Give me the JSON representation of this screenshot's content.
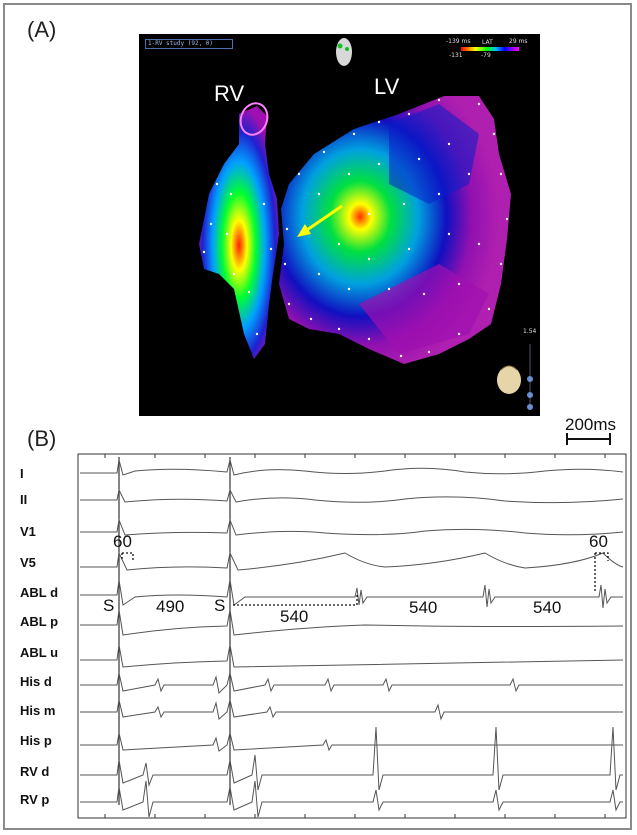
{
  "panel_a": {
    "label": "(A)",
    "study_select": "1-RV study (92, 0)",
    "chambers": {
      "rv": "RV",
      "lv": "LV"
    },
    "lat_scale": {
      "title": "LAT",
      "min_top": "-139 ms",
      "max_top": "29 ms",
      "min_bottom": "-131",
      "max_bottom": "-79"
    },
    "toolbar_value": "1.54",
    "colors": [
      "#ff0000",
      "#ffff00",
      "#00ff00",
      "#00b0ff",
      "#0000ff",
      "#a000a0"
    ]
  },
  "panel_b": {
    "label": "(B)",
    "scale_bar": "200ms",
    "channels": [
      "I",
      "II",
      "V1",
      "V5",
      "ABL d",
      "ABL p",
      "ABL u",
      "His d",
      "His m",
      "His p",
      "RV d",
      "RV p"
    ],
    "annotations": {
      "s1": "S",
      "s2": "S",
      "i1": "490",
      "i2": "540",
      "i3": "540",
      "i4": "540",
      "d1": "60",
      "d2": "60"
    }
  }
}
